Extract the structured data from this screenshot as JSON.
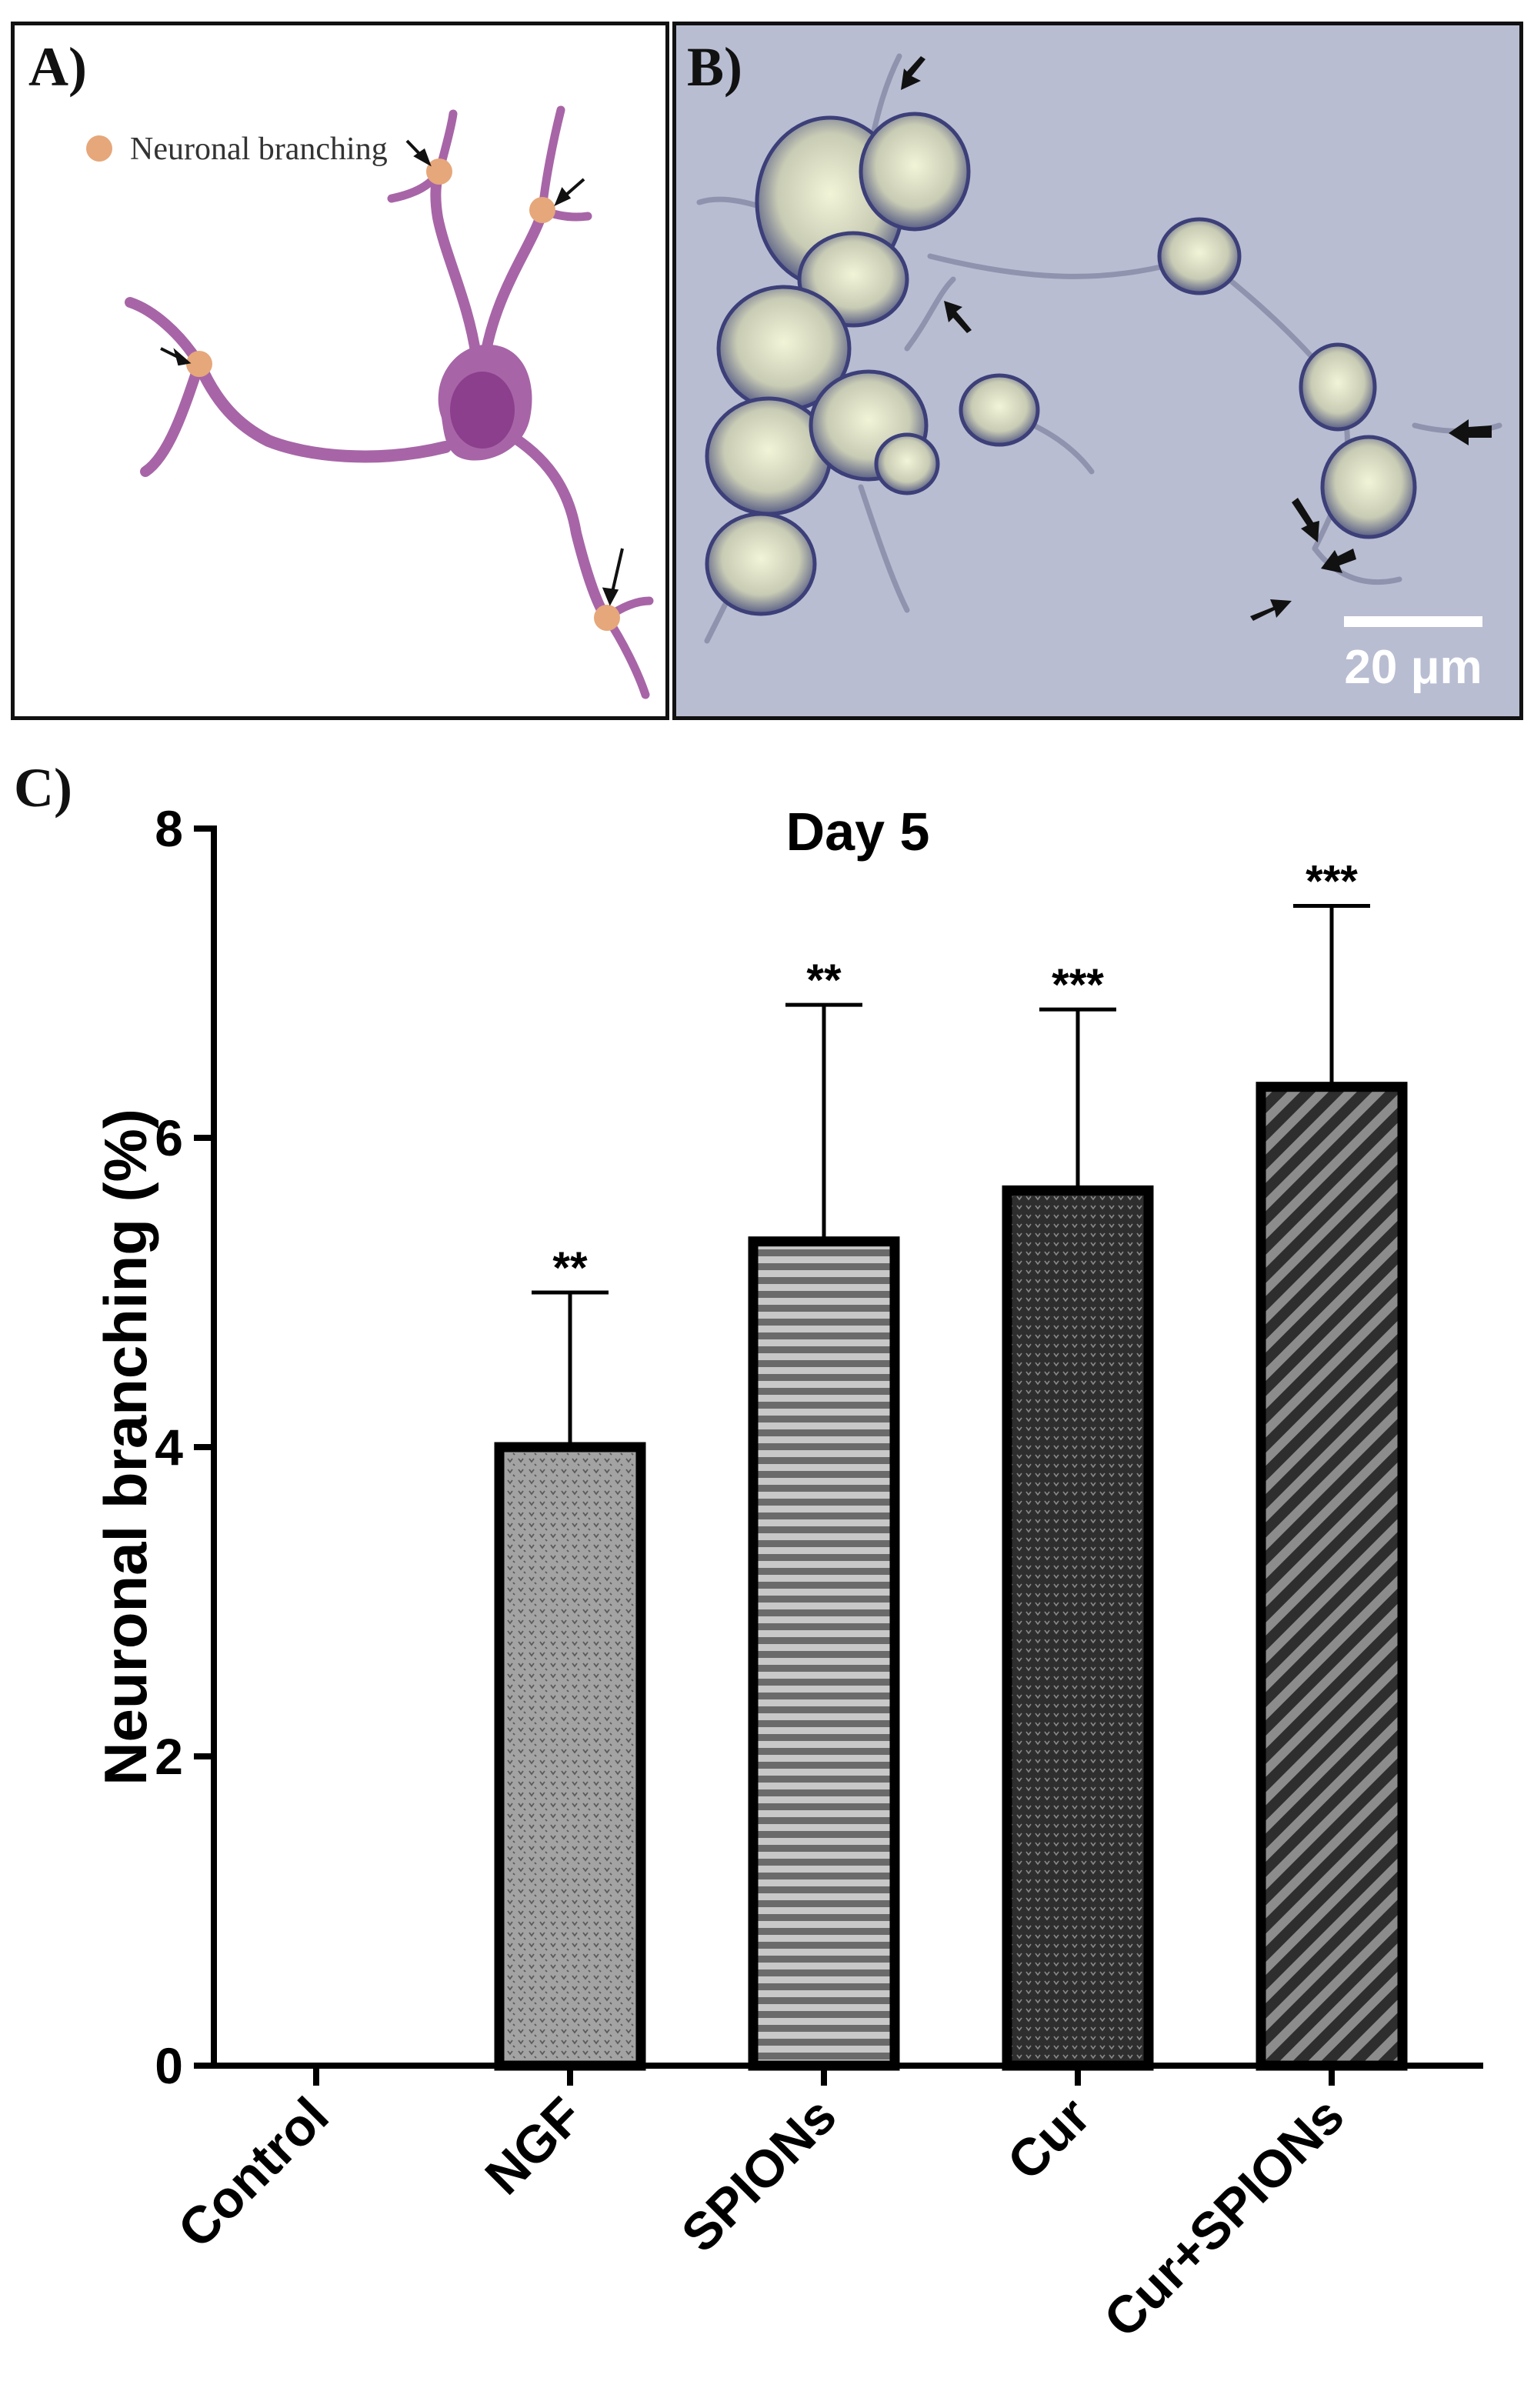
{
  "panels": {
    "a": {
      "label": "A)",
      "legend_text": "Neuronal branching",
      "colors": {
        "neuron": "#a765a7",
        "soma_nucleus": "#8c3f8c",
        "branch_point": "#e6a77a"
      }
    },
    "b": {
      "label": "B)",
      "scale_bar_label": "20 μm"
    },
    "c": {
      "label": "C)"
    }
  },
  "chart_data": {
    "type": "bar",
    "title": "Day 5",
    "ylabel": "Neuronal branching (%)",
    "xlabel": "",
    "categories": [
      "Control",
      "NGF",
      "SPIONs",
      "Cur",
      "Cur+SPIONs"
    ],
    "values": [
      0,
      4.0,
      5.33,
      5.66,
      6.33
    ],
    "error_upper": [
      0,
      1.0,
      1.53,
      1.17,
      1.17
    ],
    "significance": [
      "",
      "**",
      "**",
      "***",
      "***"
    ],
    "ylim": [
      0,
      8
    ],
    "yticks": [
      0,
      2,
      4,
      6,
      8
    ],
    "grid": false,
    "bar_patterns": [
      "none",
      "dots-light",
      "horizontal-stripes",
      "dots-dark",
      "diagonal-stripes"
    ],
    "colors": {
      "bar_edge": "#000000",
      "light_fill": "#9a9a9a",
      "dark_fill": "#3a3a3a"
    }
  }
}
